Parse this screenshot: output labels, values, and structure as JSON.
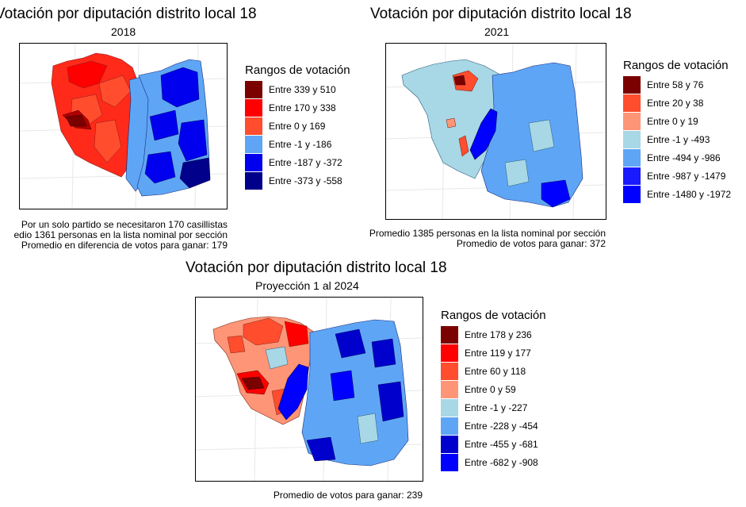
{
  "maps": [
    {
      "title": "Votación por diputación distrito local 18",
      "subtitle": "2018",
      "legend": {
        "title": "Rangos de votación",
        "items": [
          {
            "label": "Entre 339 y 510",
            "color": "#7b0000"
          },
          {
            "label": "Entre 170 y 338",
            "color": "#ff0000"
          },
          {
            "label": "Entre 0 y 169",
            "color": "#ff4d2e"
          },
          {
            "label": "Entre -1 y -186",
            "color": "#5ea6f5"
          },
          {
            "label": "Entre -187 y -372",
            "color": "#0000ee"
          },
          {
            "label": "Entre -373 y -558",
            "color": "#00008b"
          }
        ]
      },
      "caption": [
        "Por un solo partido se necesitaron 170 casillistas",
        "edio  1361 personas en la lista nominal por sección",
        "Promedio en diferencia de votos para ganar: 179"
      ]
    },
    {
      "title": "Votación por diputación distrito local 18",
      "subtitle": "2021",
      "legend": {
        "title": "Rangos de votación",
        "items": [
          {
            "label": "Entre 58 y 76",
            "color": "#7b0000"
          },
          {
            "label": "Entre 20 y 38",
            "color": "#ff4d2e"
          },
          {
            "label": "Entre 0 y 19",
            "color": "#ff9577"
          },
          {
            "label": "Entre -1 y -493",
            "color": "#a8d7e6"
          },
          {
            "label": "Entre -494 y -986",
            "color": "#5ea6f5"
          },
          {
            "label": "Entre -987 y -1479",
            "color": "#1a1aff"
          },
          {
            "label": "Entre -1480 y -1972",
            "color": "#0000ff"
          }
        ]
      },
      "caption": [
        "Promedio 1385 personas en la lista nominal por sección",
        "Promedio de votos para ganar: 372"
      ]
    },
    {
      "title": "Votación por diputación distrito local 18",
      "subtitle": "Proyección 1 al 2024",
      "legend": {
        "title": "Rangos de votación",
        "items": [
          {
            "label": "Entre 178 y 236",
            "color": "#7b0000"
          },
          {
            "label": "Entre 119 y 177",
            "color": "#ff0000"
          },
          {
            "label": "Entre 60 y 118",
            "color": "#ff4d2e"
          },
          {
            "label": "Entre 0 y 59",
            "color": "#ff9577"
          },
          {
            "label": "Entre -1 y -227",
            "color": "#a8d7e6"
          },
          {
            "label": "Entre -228 y -454",
            "color": "#5ea6f5"
          },
          {
            "label": "Entre -455 y -681",
            "color": "#0000cc"
          },
          {
            "label": "Entre -682 y -908",
            "color": "#0000ff"
          }
        ]
      },
      "caption": [
        "Promedio de votos para ganar: 239"
      ]
    }
  ]
}
